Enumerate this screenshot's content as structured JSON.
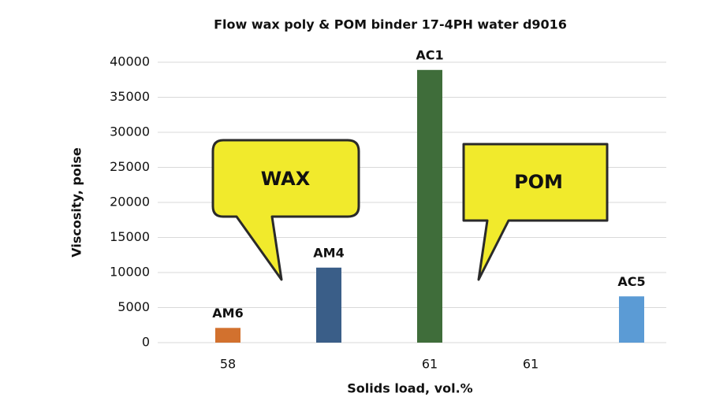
{
  "chart_data": {
    "type": "bar",
    "title": "Flow wax poly & POM binder 17-4PH water d9016",
    "x_label": "Solids load, vol.%",
    "y_label": "Viscosity, poise",
    "categories": [
      "58",
      null,
      "61",
      "61",
      null
    ],
    "values": [
      2100,
      10700,
      38900,
      null,
      6600
    ],
    "bar_labels": [
      "AM6",
      "AM4",
      "AC1",
      null,
      "AC5"
    ],
    "colors": [
      "#d2712e",
      "#3a5e88",
      "#3f6d3a",
      null,
      "#5b9bd5"
    ],
    "ylim": [
      0,
      40000
    ],
    "yticks": [
      0,
      5000,
      10000,
      15000,
      20000,
      25000,
      30000,
      35000,
      40000
    ],
    "grid": true,
    "annotations": [
      "WAX",
      "POM"
    ]
  }
}
